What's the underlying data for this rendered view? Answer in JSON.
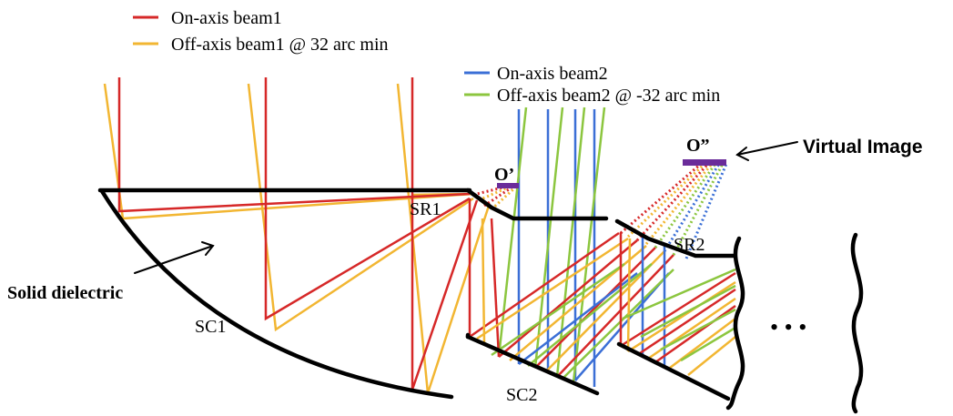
{
  "colors": {
    "on_axis_beam1": "#d62828",
    "off_axis_beam1": "#f2b632",
    "on_axis_beam2": "#3b6fd6",
    "off_axis_beam2": "#8cc63f",
    "structure": "#000000",
    "image_bar": "#6a2c9a"
  },
  "legend": {
    "beam1_on": "On-axis beam1",
    "beam1_off": "Off-axis beam1 @ 32 arc min",
    "beam2_on": "On-axis beam2",
    "beam2_off": "Off-axis beam2 @ -32 arc min"
  },
  "labels": {
    "o_prime": "O’",
    "o_double_prime": "O”",
    "virtual_image": "Virtual Image",
    "sr1": "SR1",
    "sr2": "SR2",
    "sc1": "SC1",
    "sc2": "SC2",
    "solid_dielectric": "Solid dielectric",
    "ellipsis": "• • •"
  }
}
